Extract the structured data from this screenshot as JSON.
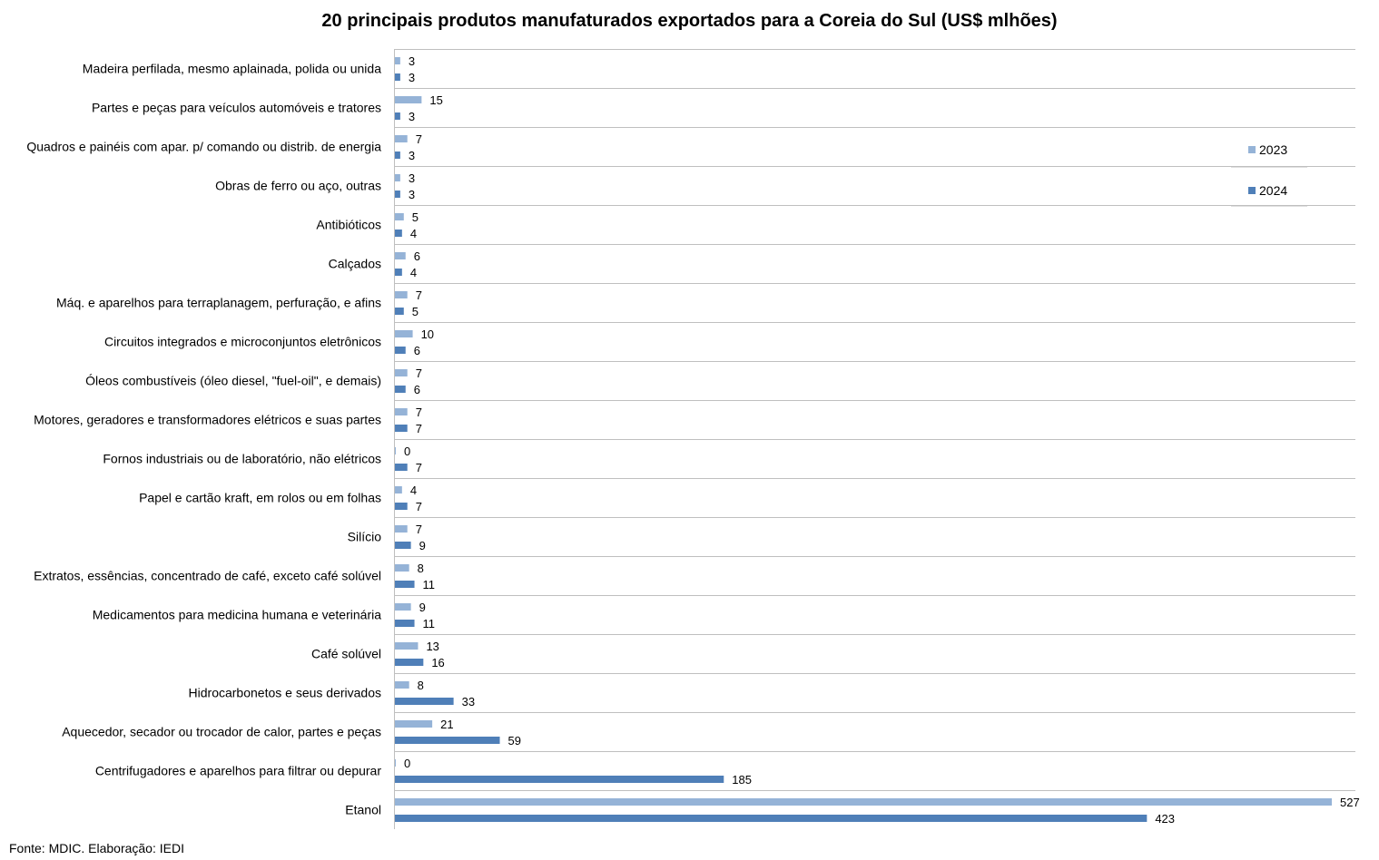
{
  "chart_data": {
    "type": "bar",
    "orientation": "horizontal",
    "title": "20 principais produtos manufaturados exportados para a Coreia do Sul (US$ mlhões)",
    "categories": [
      "Madeira perfilada, mesmo aplainada, polida ou unida",
      "Partes e peças para veículos automóveis e tratores",
      "Quadros e painéis com apar. p/ comando ou distrib. de energia",
      "Obras de ferro ou aço, outras",
      "Antibióticos",
      "Calçados",
      "Máq. e aparelhos para terraplanagem, perfuração, e afins",
      "Circuitos integrados e microconjuntos eletrônicos",
      "Óleos combustíveis (óleo diesel, \"fuel-oil\", e demais)",
      "Motores, geradores e transformadores elétricos e suas partes",
      "Fornos industriais ou de laboratório, não elétricos",
      "Papel e cartão kraft, em rolos ou em folhas",
      "Silício",
      "Extratos, essências, concentrado de café, exceto café solúvel",
      "Medicamentos para medicina humana e veterinária",
      "Café solúvel",
      "Hidrocarbonetos e seus derivados",
      "Aquecedor, secador ou trocador de calor, partes e peças",
      "Centrifugadores e aparelhos para filtrar ou depurar",
      "Etanol"
    ],
    "series": [
      {
        "name": "2023",
        "color": "#95B3D7",
        "values": [
          3,
          15,
          7,
          3,
          5,
          6,
          7,
          10,
          7,
          7,
          0,
          4,
          7,
          8,
          9,
          13,
          8,
          21,
          0,
          527
        ]
      },
      {
        "name": "2024",
        "color": "#4F7FB8",
        "values": [
          3,
          3,
          3,
          3,
          4,
          4,
          5,
          6,
          6,
          7,
          7,
          7,
          9,
          11,
          11,
          16,
          33,
          59,
          185,
          423
        ]
      }
    ],
    "xlim": [
      0,
      527
    ],
    "grid": false,
    "legend_position": "right"
  },
  "footer": {
    "source": "Fonte: MDIC. Elaboração: IEDI"
  }
}
